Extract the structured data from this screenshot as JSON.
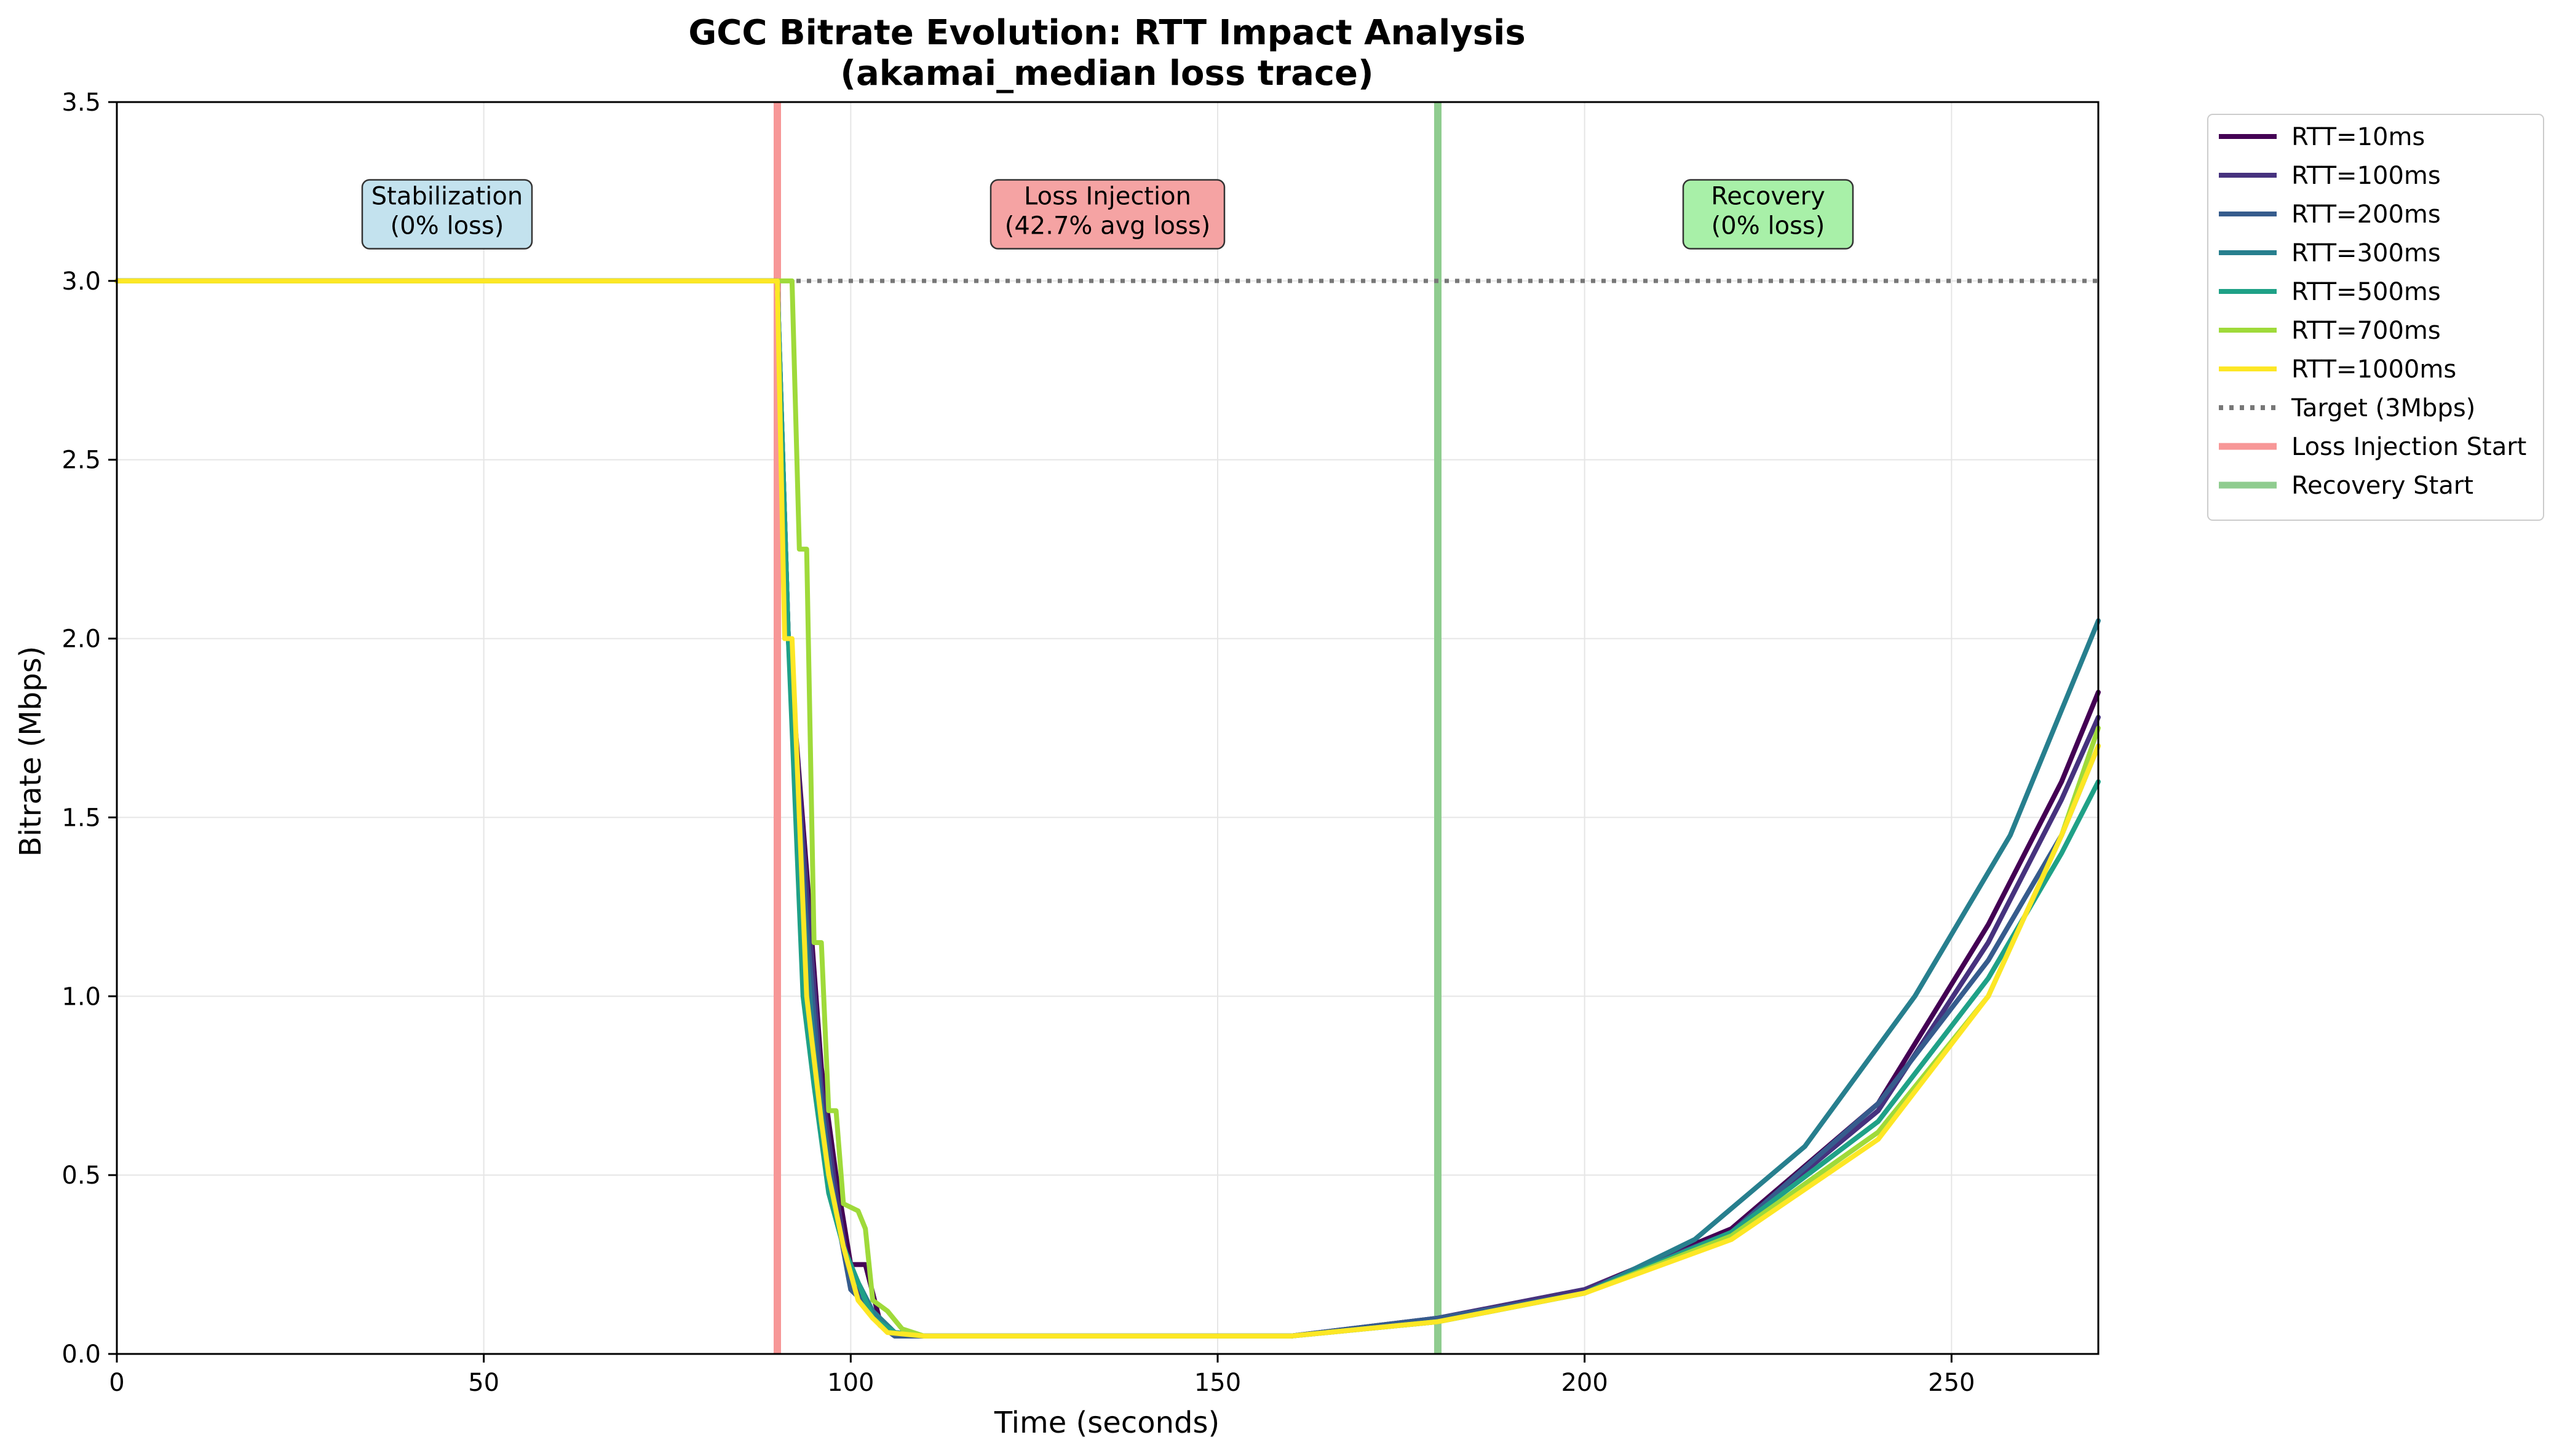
{
  "chart_data": {
    "type": "line",
    "title_line1": "GCC Bitrate Evolution: RTT Impact Analysis",
    "title_line2": "(akamai_median loss trace)",
    "xlabel": "Time (seconds)",
    "ylabel": "Bitrate (Mbps)",
    "xlim": [
      0,
      270
    ],
    "ylim": [
      0,
      3.5
    ],
    "xticks": [
      0,
      50,
      100,
      150,
      200,
      250
    ],
    "yticks": [
      0.0,
      0.5,
      1.0,
      1.5,
      2.0,
      2.5,
      3.0,
      3.5
    ],
    "xtick_labels": [
      "0",
      "50",
      "100",
      "150",
      "200",
      "250"
    ],
    "ytick_labels": [
      "0.0",
      "0.5",
      "1.0",
      "1.5",
      "2.0",
      "2.5",
      "3.0",
      "3.5"
    ],
    "grid": true,
    "legend_position": "outside-right",
    "target": {
      "name": "Target (3Mbps)",
      "value": 3.0,
      "color": "#777777"
    },
    "events": [
      {
        "name": "Loss Injection Start",
        "x": 90,
        "color": "#f79797"
      },
      {
        "name": "Recovery Start",
        "x": 180,
        "color": "#8fcc8f"
      }
    ],
    "phases": [
      {
        "line1": "Stabilization",
        "line2": "(0% loss)",
        "x": 45,
        "y": 3.2,
        "color": "#c3e2ee"
      },
      {
        "line1": "Loss Injection",
        "line2": "(42.7% avg loss)",
        "x": 135,
        "y": 3.2,
        "color": "#f5a3a3"
      },
      {
        "line1": "Recovery",
        "line2": "(0% loss)",
        "x": 225,
        "y": 3.2,
        "color": "#a8f0a8"
      }
    ],
    "series": [
      {
        "name": "RTT=10ms",
        "color": "#440154",
        "points": [
          [
            0,
            3.0
          ],
          [
            90,
            3.0
          ],
          [
            91.5,
            2.0
          ],
          [
            94,
            1.35
          ],
          [
            96,
            0.8
          ],
          [
            98,
            0.5
          ],
          [
            100,
            0.25
          ],
          [
            102,
            0.25
          ],
          [
            104,
            0.09
          ],
          [
            106,
            0.06
          ],
          [
            110,
            0.05
          ],
          [
            160,
            0.05
          ],
          [
            180,
            0.1
          ],
          [
            200,
            0.18
          ],
          [
            220,
            0.35
          ],
          [
            240,
            0.7
          ],
          [
            255,
            1.2
          ],
          [
            265,
            1.6
          ],
          [
            270,
            1.85
          ]
        ]
      },
      {
        "name": "RTT=100ms",
        "color": "#46327e",
        "points": [
          [
            0,
            3.0
          ],
          [
            90,
            3.0
          ],
          [
            91.5,
            2.0
          ],
          [
            94,
            1.3
          ],
          [
            96,
            0.75
          ],
          [
            98,
            0.45
          ],
          [
            100,
            0.2
          ],
          [
            102,
            0.15
          ],
          [
            104,
            0.08
          ],
          [
            106,
            0.05
          ],
          [
            110,
            0.05
          ],
          [
            160,
            0.05
          ],
          [
            180,
            0.1
          ],
          [
            200,
            0.18
          ],
          [
            220,
            0.34
          ],
          [
            240,
            0.68
          ],
          [
            255,
            1.15
          ],
          [
            265,
            1.55
          ],
          [
            270,
            1.78
          ]
        ]
      },
      {
        "name": "RTT=200ms",
        "color": "#365c8d",
        "points": [
          [
            0,
            3.0
          ],
          [
            90,
            3.0
          ],
          [
            91.5,
            2.0
          ],
          [
            94,
            1.2
          ],
          [
            96,
            0.7
          ],
          [
            98,
            0.4
          ],
          [
            100,
            0.18
          ],
          [
            102,
            0.14
          ],
          [
            104,
            0.08
          ],
          [
            106,
            0.05
          ],
          [
            110,
            0.05
          ],
          [
            160,
            0.05
          ],
          [
            180,
            0.1
          ],
          [
            200,
            0.17
          ],
          [
            220,
            0.34
          ],
          [
            240,
            0.7
          ],
          [
            255,
            1.1
          ],
          [
            265,
            1.45
          ],
          [
            270,
            1.7
          ]
        ]
      },
      {
        "name": "RTT=300ms",
        "color": "#277f8e",
        "points": [
          [
            0,
            3.0
          ],
          [
            90,
            3.0
          ],
          [
            91.5,
            2.0
          ],
          [
            93,
            1.4
          ],
          [
            95,
            0.85
          ],
          [
            97,
            0.5
          ],
          [
            99,
            0.3
          ],
          [
            101,
            0.2
          ],
          [
            103,
            0.12
          ],
          [
            106,
            0.06
          ],
          [
            110,
            0.05
          ],
          [
            160,
            0.05
          ],
          [
            180,
            0.09
          ],
          [
            200,
            0.17
          ],
          [
            215,
            0.32
          ],
          [
            230,
            0.58
          ],
          [
            245,
            1.0
          ],
          [
            258,
            1.45
          ],
          [
            265,
            1.8
          ],
          [
            270,
            2.05
          ]
        ]
      },
      {
        "name": "RTT=500ms",
        "color": "#1fa187",
        "points": [
          [
            0,
            3.0
          ],
          [
            90,
            3.0
          ],
          [
            91.5,
            2.0
          ],
          [
            93.5,
            1.0
          ],
          [
            95,
            0.75
          ],
          [
            97,
            0.45
          ],
          [
            99,
            0.3
          ],
          [
            101,
            0.2
          ],
          [
            103,
            0.1
          ],
          [
            106,
            0.06
          ],
          [
            110,
            0.05
          ],
          [
            160,
            0.05
          ],
          [
            180,
            0.09
          ],
          [
            200,
            0.17
          ],
          [
            220,
            0.34
          ],
          [
            240,
            0.65
          ],
          [
            255,
            1.05
          ],
          [
            265,
            1.4
          ],
          [
            270,
            1.6
          ]
        ]
      },
      {
        "name": "RTT=700ms",
        "color": "#9fda3a",
        "points": [
          [
            0,
            3.0
          ],
          [
            90,
            3.0
          ],
          [
            92,
            3.0
          ],
          [
            93,
            2.25
          ],
          [
            94,
            2.25
          ],
          [
            95,
            1.15
          ],
          [
            96,
            1.15
          ],
          [
            97,
            0.68
          ],
          [
            98,
            0.68
          ],
          [
            99,
            0.42
          ],
          [
            101,
            0.4
          ],
          [
            102,
            0.35
          ],
          [
            103,
            0.15
          ],
          [
            105,
            0.12
          ],
          [
            107,
            0.07
          ],
          [
            110,
            0.05
          ],
          [
            160,
            0.05
          ],
          [
            180,
            0.09
          ],
          [
            200,
            0.17
          ],
          [
            220,
            0.33
          ],
          [
            240,
            0.62
          ],
          [
            255,
            1.0
          ],
          [
            265,
            1.45
          ],
          [
            270,
            1.75
          ]
        ]
      },
      {
        "name": "RTT=1000ms",
        "color": "#fde725",
        "points": [
          [
            0,
            3.0
          ],
          [
            90,
            3.0
          ],
          [
            91,
            2.0
          ],
          [
            92,
            2.0
          ],
          [
            93,
            1.5
          ],
          [
            94,
            1.0
          ],
          [
            96,
            0.65
          ],
          [
            97,
            0.5
          ],
          [
            99,
            0.3
          ],
          [
            101,
            0.15
          ],
          [
            103,
            0.1
          ],
          [
            105,
            0.06
          ],
          [
            110,
            0.05
          ],
          [
            160,
            0.05
          ],
          [
            180,
            0.09
          ],
          [
            200,
            0.17
          ],
          [
            220,
            0.32
          ],
          [
            240,
            0.6
          ],
          [
            255,
            1.0
          ],
          [
            265,
            1.45
          ],
          [
            270,
            1.7
          ]
        ]
      }
    ]
  }
}
